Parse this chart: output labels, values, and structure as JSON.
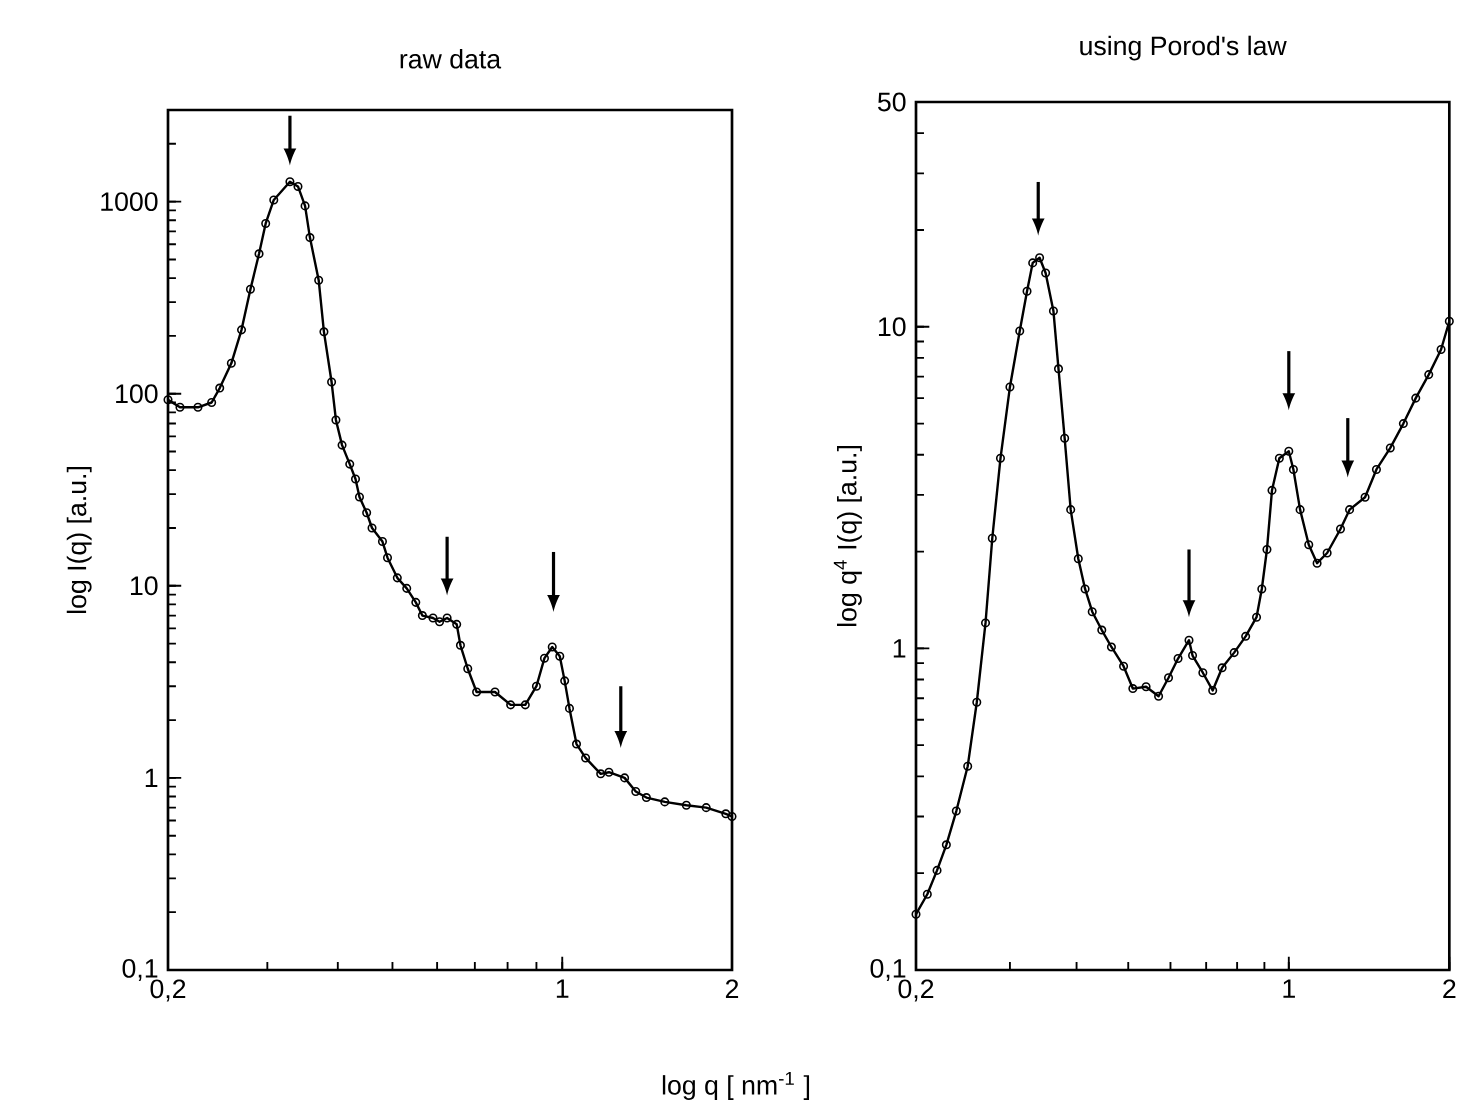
{
  "chart_data": [
    {
      "type": "line",
      "title": "raw data",
      "xlabel": "log q [ nm$^{-1}$ ]",
      "ylabel": "log I(q)  [a.u.]",
      "log": "xy",
      "marker": "circle",
      "line_style": "solid",
      "xlim": [
        0.2,
        2
      ],
      "ylim": [
        0.1,
        3000
      ],
      "xticks": [
        {
          "value": 0.2,
          "label": "0,2"
        },
        1,
        2
      ],
      "yticks": [
        {
          "value": 0.1,
          "label": "0,1"
        },
        1,
        10,
        100,
        1000
      ],
      "series": [
        {
          "color": "#000000",
          "x": [
            0.2,
            0.21,
            0.226,
            0.239,
            0.247,
            0.259,
            0.27,
            0.28,
            0.29,
            0.298,
            0.308,
            0.329,
            0.34,
            0.35,
            0.357,
            0.37,
            0.378,
            0.39,
            0.397,
            0.407,
            0.42,
            0.43,
            0.437,
            0.45,
            0.46,
            0.48,
            0.49,
            0.51,
            0.53,
            0.55,
            0.565,
            0.59,
            0.606,
            0.625,
            0.65,
            0.66,
            0.68,
            0.705,
            0.76,
            0.81,
            0.86,
            0.9,
            0.93,
            0.96,
            0.99,
            1.01,
            1.03,
            1.06,
            1.1,
            1.17,
            1.21,
            1.29,
            1.35,
            1.41,
            1.52,
            1.66,
            1.8,
            1.95,
            2.0
          ],
          "values": [
            93,
            85,
            85,
            90,
            107,
            144,
            215,
            350,
            535,
            770,
            1020,
            1270,
            1200,
            950,
            650,
            390,
            210,
            115,
            73,
            54,
            43,
            36,
            29,
            24,
            20,
            17,
            14,
            11,
            9.7,
            8.2,
            7,
            6.8,
            6.5,
            6.8,
            6.3,
            4.9,
            3.7,
            2.8,
            2.8,
            2.4,
            2.4,
            3.0,
            4.2,
            4.8,
            4.3,
            3.2,
            2.3,
            1.5,
            1.27,
            1.05,
            1.07,
            1.0,
            0.85,
            0.79,
            0.75,
            0.72,
            0.7,
            0.65,
            0.63
          ]
        }
      ]
    },
    {
      "type": "line",
      "title": "using Porod's law",
      "ylabel": "log q$^{4}$ I(q)  [a.u.]",
      "log": "xy",
      "marker": "circle",
      "line_style": "solid",
      "xlim": [
        0.2,
        2
      ],
      "ylim": [
        0.1,
        50
      ],
      "xticks": [
        {
          "value": 0.2,
          "label": "0,2"
        },
        1,
        2
      ],
      "yticks": [
        {
          "value": 0.1,
          "label": "0,1"
        },
        1,
        10,
        50
      ],
      "series": [
        {
          "color": "#000000",
          "x": [
            0.2,
            0.21,
            0.219,
            0.228,
            0.238,
            0.25,
            0.26,
            0.27,
            0.278,
            0.288,
            0.3,
            0.313,
            0.323,
            0.331,
            0.341,
            0.35,
            0.362,
            0.37,
            0.38,
            0.39,
            0.403,
            0.415,
            0.428,
            0.446,
            0.465,
            0.49,
            0.51,
            0.54,
            0.57,
            0.595,
            0.62,
            0.65,
            0.66,
            0.69,
            0.72,
            0.75,
            0.79,
            0.83,
            0.87,
            0.89,
            0.91,
            0.93,
            0.96,
            1.0,
            1.02,
            1.05,
            1.09,
            1.13,
            1.18,
            1.25,
            1.3,
            1.39,
            1.46,
            1.55,
            1.64,
            1.73,
            1.83,
            1.93,
            2.0
          ],
          "values": [
            0.149,
            0.172,
            0.204,
            0.245,
            0.312,
            0.43,
            0.68,
            1.2,
            2.2,
            3.9,
            6.5,
            9.7,
            12.9,
            15.8,
            16.4,
            14.7,
            11.2,
            7.4,
            4.5,
            2.7,
            1.9,
            1.53,
            1.3,
            1.14,
            1.01,
            0.88,
            0.75,
            0.76,
            0.71,
            0.81,
            0.93,
            1.06,
            0.95,
            0.84,
            0.74,
            0.87,
            0.97,
            1.09,
            1.25,
            1.53,
            2.03,
            3.1,
            3.9,
            4.1,
            3.6,
            2.7,
            2.1,
            1.84,
            1.98,
            2.35,
            2.7,
            2.95,
            3.6,
            4.2,
            5.0,
            6.0,
            7.1,
            8.5,
            10.4
          ]
        }
      ]
    }
  ]
}
